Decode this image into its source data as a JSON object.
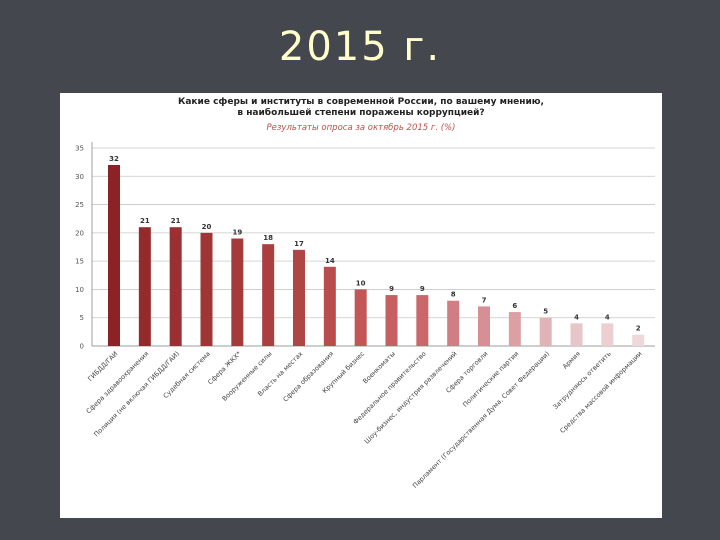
{
  "slide": {
    "title": "2015 г."
  },
  "chart_data": {
    "type": "bar",
    "title_line1": "Какие сферы и институты в современной России, по вашему мнению,",
    "title_line2": "в наибольшей степени поражены коррупцией?",
    "subtitle": "Результаты опроса за октябрь 2015 г. (%)",
    "ylim": [
      0,
      35
    ],
    "yticks": [
      0,
      5,
      10,
      15,
      20,
      25,
      30,
      35
    ],
    "grid": true,
    "categories": [
      "ГИБДД/ГАИ",
      "Сфера здравоохранения",
      "Полиция (не включая ГИБДД/ГАИ)",
      "Судебная система",
      "Сфера ЖКХ*",
      "Вооруженные силы",
      "Власть на местах",
      "Сфера образования",
      "Крупный бизнес",
      "Военкоматы",
      "Федеральное правительство",
      "Шоу-бизнес, индустрия развлечений",
      "Сфера торговли",
      "Политические партии",
      "Парламент (Государственная Дума, Совет Федерации)",
      "Армия",
      "Затрудняюсь ответить",
      "Средства массовой информации"
    ],
    "values": [
      32,
      21,
      21,
      20,
      19,
      18,
      17,
      14,
      10,
      9,
      9,
      8,
      7,
      6,
      5,
      4,
      4,
      2
    ],
    "colors": [
      "#8b2326",
      "#952a2d",
      "#9a3033",
      "#a03536",
      "#a53a3b",
      "#ab3f40",
      "#b04546",
      "#b94c4d",
      "#c35657",
      "#c65f62",
      "#c9676b",
      "#d07e84",
      "#d68f94",
      "#daa0a4",
      "#e0b3b6",
      "#e6c6c8",
      "#ebcfd1",
      "#efd8da"
    ]
  }
}
